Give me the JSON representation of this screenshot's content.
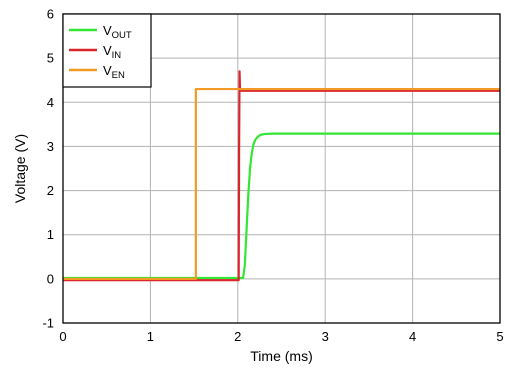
{
  "chart_data": {
    "type": "line",
    "xlabel": "Time (ms)",
    "ylabel": "Voltage (V)",
    "xlim": [
      0,
      5
    ],
    "ylim": [
      -1,
      6
    ],
    "xticks": [
      0,
      1,
      2,
      3,
      4,
      5
    ],
    "yticks": [
      -1,
      0,
      1,
      2,
      3,
      4,
      5,
      6
    ],
    "grid": true,
    "legend_position": "top-left",
    "series": [
      {
        "name": "VOUT",
        "legend_main": "V",
        "legend_sub": "OUT",
        "color": "#33e633",
        "x": [
          0,
          2.06,
          2.08,
          2.1,
          2.12,
          2.14,
          2.16,
          2.18,
          2.2,
          2.23,
          2.26,
          2.3,
          2.4,
          5.0
        ],
        "y": [
          0.02,
          0.02,
          0.3,
          1.1,
          1.9,
          2.5,
          2.85,
          3.05,
          3.15,
          3.22,
          3.26,
          3.28,
          3.29,
          3.29
        ]
      },
      {
        "name": "VIN",
        "legend_main": "V",
        "legend_sub": "IN",
        "color": "#d9262d",
        "x": [
          0,
          2.01,
          2.015,
          2.02,
          2.025,
          2.04,
          5.0
        ],
        "y": [
          -0.03,
          -0.03,
          3.0,
          4.7,
          4.3,
          4.26,
          4.26
        ]
      },
      {
        "name": "VEN",
        "legend_main": "V",
        "legend_sub": "EN",
        "color": "#f29a25",
        "x": [
          0,
          1.52,
          1.52,
          5.0
        ],
        "y": [
          0.0,
          0.0,
          4.3,
          4.3
        ]
      }
    ]
  }
}
